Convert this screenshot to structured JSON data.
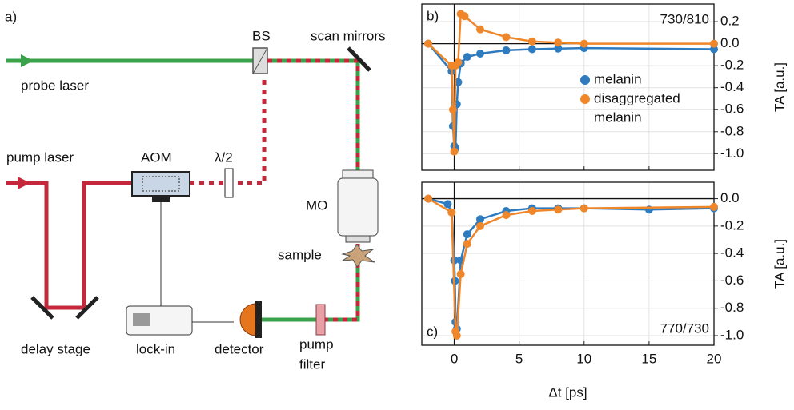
{
  "diagram": {
    "panel": "a)",
    "probe_laser": "probe laser",
    "bs": "BS",
    "scan_mirrors": "scan mirrors",
    "pump_laser": "pump laser",
    "aom": "AOM",
    "half_wave": "λ/2",
    "mo": "MO",
    "sample": "sample",
    "delay_stage": "delay stage",
    "lock_in": "lock-in",
    "detector": "detector",
    "pump_filter": [
      "pump",
      "filter"
    ]
  },
  "chart_data": [
    {
      "type": "line",
      "panel": "b)",
      "annotation": "730/810",
      "ylabel": "TA [a.u.]",
      "xlim": [
        -2.5,
        20
      ],
      "xticks": [
        0,
        5,
        10,
        15,
        20
      ],
      "ylim": [
        -1.15,
        0.36
      ],
      "yticks": [
        0.2,
        {
          "value": 0,
          "label": "0.0"
        },
        -0.2,
        -0.4,
        -0.6,
        -0.8,
        {
          "value": -1,
          "label": "-1.0"
        }
      ],
      "grid": true,
      "legend": "right",
      "series": [
        {
          "name": "melanin",
          "color": "#2f7bbf",
          "x": [
            -2,
            -0.2,
            -0.1,
            0,
            0.1,
            0.2,
            0.3,
            0.5,
            1,
            2,
            4,
            6,
            8,
            10,
            20
          ],
          "values": [
            0,
            -0.25,
            -0.75,
            -0.93,
            -0.95,
            -0.55,
            -0.35,
            -0.18,
            -0.12,
            -0.09,
            -0.06,
            -0.05,
            -0.045,
            -0.04,
            -0.05
          ]
        },
        {
          "name": [
            "disaggregated",
            "melanin"
          ],
          "color": "#f0862a",
          "x": [
            -2,
            -0.2,
            -0.1,
            0,
            0.1,
            0.3,
            0.5,
            0.8,
            2,
            4,
            6,
            8,
            10,
            20
          ],
          "values": [
            0,
            -0.2,
            -0.6,
            -0.98,
            -0.2,
            -0.17,
            0.27,
            0.25,
            0.13,
            0.06,
            0.02,
            0.01,
            0,
            0
          ]
        }
      ]
    },
    {
      "type": "line",
      "panel": "c)",
      "annotation": "770/730",
      "ylabel": "TA [a.u.]",
      "xlabel": "Δt [ps]",
      "xlim": [
        -2.5,
        20
      ],
      "xticks": [
        0,
        5,
        10,
        15,
        20
      ],
      "ylim": [
        -1.07,
        0.12
      ],
      "yticks": [
        {
          "value": 0,
          "label": "0.0"
        },
        -0.2,
        -0.4,
        -0.6,
        -0.8,
        {
          "value": -1,
          "label": "-1.0"
        }
      ],
      "grid": true,
      "series": [
        {
          "color": "#2f7bbf",
          "x": [
            -2,
            -0.5,
            -0.2,
            0,
            0.05,
            0.1,
            0.2,
            0.5,
            1,
            2,
            4,
            6,
            8,
            10,
            15,
            20
          ],
          "values": [
            0,
            -0.04,
            -0.1,
            -0.45,
            -0.6,
            -0.9,
            -0.95,
            -0.45,
            -0.26,
            -0.15,
            -0.09,
            -0.07,
            -0.07,
            -0.07,
            -0.08,
            -0.07
          ]
        },
        {
          "color": "#f0862a",
          "x": [
            -2,
            -0.2,
            0.1,
            0.2,
            0.5,
            1,
            2,
            4,
            6,
            8,
            10,
            20
          ],
          "values": [
            0,
            -0.1,
            -0.97,
            -1,
            -0.55,
            -0.33,
            -0.2,
            -0.12,
            -0.09,
            -0.08,
            -0.07,
            -0.06
          ]
        }
      ]
    }
  ]
}
